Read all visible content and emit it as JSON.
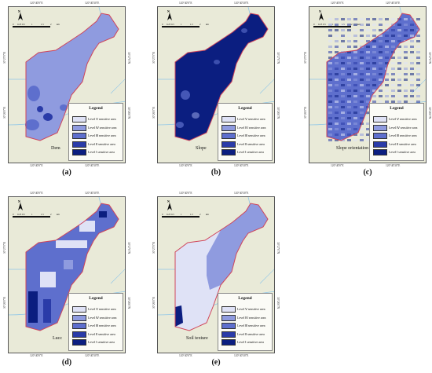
{
  "colors": {
    "level_v": "#dfe2f6",
    "level_iv": "#8f9bdf",
    "level_iii": "#5e6fcd",
    "level_ii": "#2a3ba8",
    "level_i": "#0b1e80",
    "boundary": "#d0455a",
    "background": "#e9ead8",
    "river": "#8ec6e8"
  },
  "map_common": {
    "north_label": "N",
    "coord_top_left": "120°40'0\"E",
    "coord_top_right": "120°40'30\"E",
    "coord_bottom_left": "120°40'0\"E",
    "coord_bottom_right": "120°40'30\"E",
    "coord_left_top": "30°27'0\"N",
    "coord_left_bottom": "30°26'0\"N",
    "coord_right_top": "30°27'0\"N",
    "coord_right_bottom": "30°26'0\"N",
    "scale_labels": [
      "0",
      "0.25",
      "0.5",
      "1",
      "1.5",
      "2",
      "km"
    ]
  },
  "legend": {
    "title": "Legend",
    "items": [
      {
        "label": "Level Ⅴ sensitive area",
        "color_key": "level_v"
      },
      {
        "label": "Level Ⅳ sensitive area",
        "color_key": "level_iv"
      },
      {
        "label": "Level Ⅲ sensitive area",
        "color_key": "level_iii"
      },
      {
        "label": "Level Ⅱ sensitive area",
        "color_key": "level_ii"
      },
      {
        "label": "Level Ⅰ sensitive area",
        "color_key": "level_i"
      }
    ]
  },
  "panels": [
    {
      "id": "a",
      "factor": "Dem",
      "caption": "(a)",
      "dominant": "level_iv"
    },
    {
      "id": "b",
      "factor": "Slope",
      "caption": "(b)",
      "dominant": "level_i"
    },
    {
      "id": "c",
      "factor": "Slope orientation",
      "caption": "(c)",
      "dominant": "level_iii"
    },
    {
      "id": "d",
      "factor": "Lucc",
      "caption": "(d)",
      "dominant": "level_iii"
    },
    {
      "id": "e",
      "factor": "Soil texture",
      "caption": "(e)",
      "dominant": "level_v"
    }
  ]
}
